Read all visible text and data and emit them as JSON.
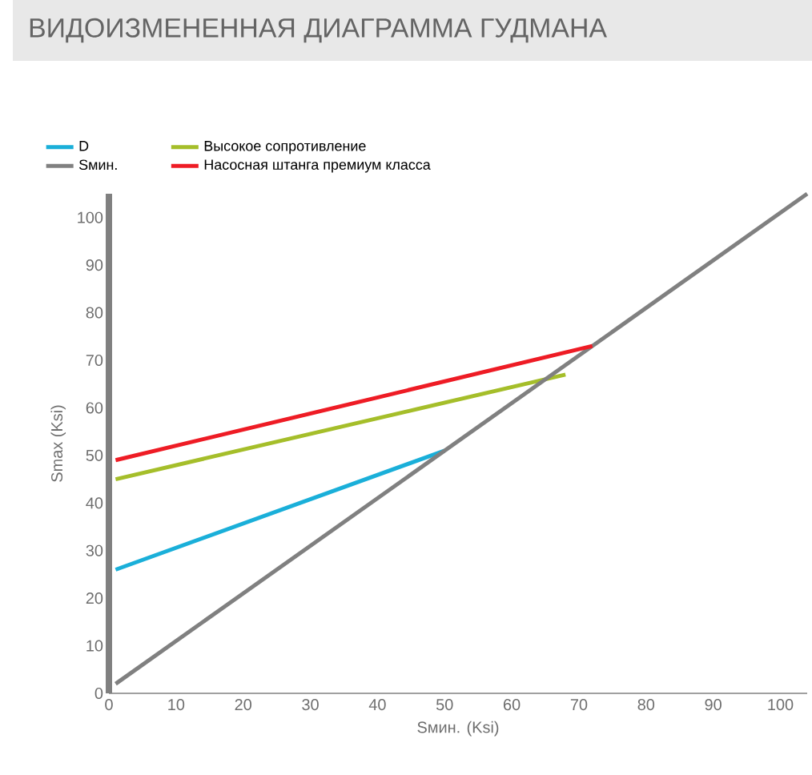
{
  "chart_data": {
    "type": "line",
    "title": "ВИДОИЗМЕНЕННАЯ ДИАГРАММА ГУДМАНА",
    "xlabel": "Sмин. (Ksi)",
    "ylabel": "Smax (Ksi)",
    "series": [
      {
        "name": "D",
        "color": "#1aafd9",
        "x": [
          1,
          50
        ],
        "values": [
          26,
          51
        ]
      },
      {
        "name": "Высокое сопротивление",
        "color": "#a5be2a",
        "x": [
          1,
          68
        ],
        "values": [
          45,
          67
        ]
      },
      {
        "name": "Sмин.",
        "color": "#808080",
        "x": [
          1,
          104
        ],
        "values": [
          2,
          105
        ]
      },
      {
        "name": "Насосная штанга премиум класса",
        "color": "#ee1c25",
        "x": [
          1,
          72
        ],
        "values": [
          49,
          73
        ]
      }
    ],
    "xlim": [
      0,
      104
    ],
    "ylim": [
      0,
      105
    ],
    "xticks": [
      0,
      10,
      20,
      30,
      40,
      50,
      60,
      70,
      80,
      90,
      100
    ],
    "yticks": [
      0,
      10,
      20,
      30,
      40,
      50,
      60,
      70,
      80,
      90,
      100
    ],
    "legend": "top",
    "grid": false,
    "marker": "none",
    "line_style": "solid"
  }
}
